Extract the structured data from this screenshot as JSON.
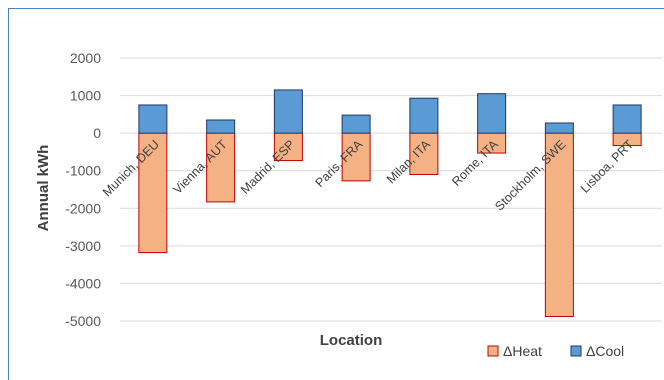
{
  "chart_data": {
    "type": "bar",
    "title": "",
    "xlabel": "Location",
    "ylabel": "Annual kWh",
    "ylim": [
      -5000,
      2000
    ],
    "yticks": [
      2000,
      1000,
      0,
      -1000,
      -2000,
      -3000,
      -4000,
      -5000
    ],
    "grid": true,
    "legend_position": "bottom-right",
    "categories": [
      "Munich, DEU",
      "Vienna, AUT",
      "Madrid, ESP",
      "Paris, FRA",
      "Milan, ITA",
      "Rome, ITA",
      "Stockholm, SWE",
      "Lisboa, PRT"
    ],
    "series": [
      {
        "name": "ΔHeat",
        "color": "#f4b183",
        "stroke": "#c00000",
        "values": [
          -3180,
          -1830,
          -730,
          -1270,
          -1100,
          -530,
          -4880,
          -330
        ]
      },
      {
        "name": "ΔCool",
        "color": "#5b9bd5",
        "stroke": "#1f3864",
        "values": [
          750,
          350,
          1150,
          480,
          930,
          1050,
          270,
          750
        ]
      }
    ]
  }
}
